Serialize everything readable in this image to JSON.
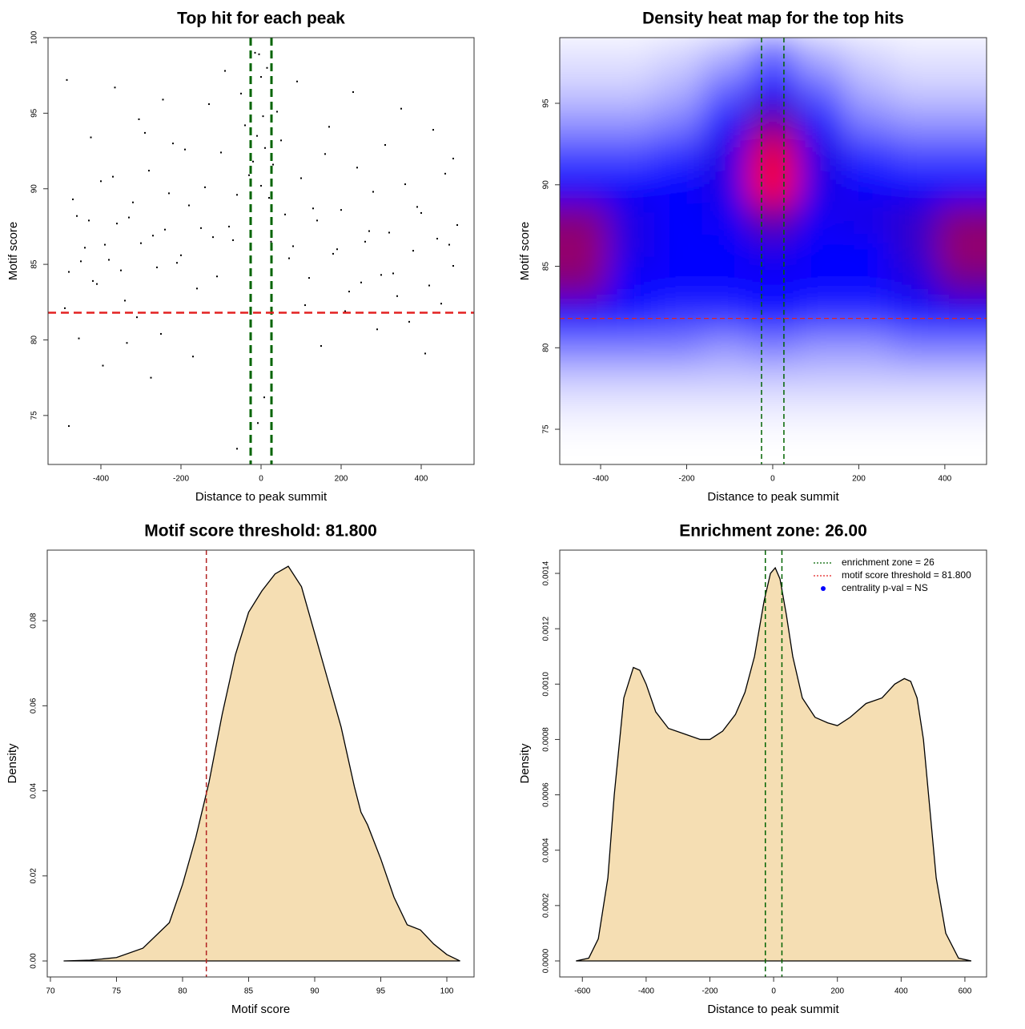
{
  "chart_data": [
    {
      "type": "scatter",
      "title": "Top hit for each peak",
      "x_label": "Distance to peak summit",
      "y_label": "Motif score",
      "xlim": [
        -532,
        532
      ],
      "ylim": [
        71.76,
        100
      ],
      "xticks": [
        -400,
        -200,
        0,
        200,
        400
      ],
      "yticks": [
        75,
        80,
        85,
        90,
        95,
        100
      ],
      "color": "#000000",
      "vlines": [
        -26,
        26
      ],
      "vline_color": "#006400",
      "hline": 81.8,
      "hline_color": "#e32020",
      "x": [
        -480,
        -460,
        -440,
        -420,
        -400,
        -380,
        -360,
        -340,
        -320,
        -300,
        -280,
        -260,
        -240,
        -220,
        -200,
        -180,
        -160,
        -140,
        -120,
        -100,
        -80,
        -60,
        -40,
        -20,
        -10,
        0,
        10,
        20,
        40,
        60,
        80,
        100,
        120,
        140,
        160,
        180,
        200,
        220,
        240,
        260,
        280,
        300,
        320,
        340,
        360,
        380,
        400,
        420,
        440,
        460,
        480,
        490,
        -490,
        -470,
        -450,
        -430,
        -410,
        -390,
        -370,
        -350,
        -330,
        -310,
        -290,
        -270,
        -250,
        -230,
        -210,
        -190,
        -170,
        -150,
        -130,
        -110,
        -90,
        -70,
        -50,
        -30,
        -5,
        5,
        30,
        50,
        70,
        90,
        110,
        130,
        150,
        170,
        190,
        210,
        230,
        250,
        270,
        290,
        310,
        330,
        350,
        370,
        390,
        410,
        430,
        450,
        470,
        -485,
        -455,
        -425,
        -395,
        -365,
        -335,
        -305,
        -275,
        -245,
        -15,
        15,
        -25,
        25,
        0,
        -8,
        8,
        -480,
        480,
        -60
      ],
      "y": [
        84.5,
        88.2,
        86.1,
        83.9,
        90.5,
        85.3,
        87.7,
        82.6,
        89.1,
        86.4,
        91.2,
        84.8,
        87.3,
        93.0,
        85.6,
        88.9,
        83.4,
        90.1,
        86.8,
        92.4,
        87.5,
        89.6,
        94.2,
        91.8,
        93.5,
        90.2,
        92.7,
        89.4,
        95.1,
        88.3,
        86.2,
        90.7,
        84.1,
        87.9,
        92.3,
        85.7,
        88.6,
        83.2,
        91.4,
        86.5,
        89.8,
        84.3,
        87.1,
        82.9,
        90.3,
        85.9,
        88.4,
        83.6,
        86.7,
        91.0,
        84.9,
        87.6,
        82.1,
        89.3,
        85.2,
        87.9,
        83.7,
        86.3,
        90.8,
        84.6,
        88.1,
        81.5,
        93.7,
        86.9,
        80.4,
        89.7,
        85.1,
        92.6,
        78.9,
        87.4,
        95.6,
        84.2,
        97.8,
        86.6,
        96.3,
        90.9,
        98.9,
        94.8,
        91.6,
        93.2,
        85.4,
        97.1,
        82.3,
        88.7,
        79.6,
        94.1,
        86.0,
        81.9,
        96.4,
        83.8,
        87.2,
        80.7,
        92.9,
        84.4,
        95.3,
        81.2,
        88.8,
        79.1,
        93.9,
        82.4,
        86.3,
        97.2,
        80.1,
        93.4,
        78.3,
        96.7,
        79.8,
        94.6,
        77.5,
        95.9,
        99.0,
        98.0,
        88.0,
        86.5,
        97.4,
        74.5,
        76.2,
        74.3,
        92.0,
        72.8
      ]
    },
    {
      "type": "heatmap",
      "title": "Density heat map for the top hits",
      "x_label": "Distance to peak summit",
      "y_label": "Motif score",
      "xlim": [
        -495,
        497
      ],
      "ylim": [
        72.84,
        99.03
      ],
      "xticks": [
        -400,
        -200,
        0,
        200,
        400
      ],
      "yticks": [
        75,
        80,
        85,
        90,
        95
      ],
      "vlines": [
        -26,
        26
      ],
      "vline_color": "#006400",
      "hline": 81.8,
      "hline_color": "#e32020",
      "x": [
        -440,
        -330,
        -220,
        -110,
        0,
        110,
        220,
        330,
        440
      ],
      "y": [
        76,
        78,
        80,
        82,
        84,
        86,
        88,
        90,
        92,
        94,
        96,
        98
      ],
      "z": [
        [
          0.03,
          0.03,
          0.03,
          0.03,
          0.03,
          0.03,
          0.03,
          0.03,
          0.03
        ],
        [
          0.1,
          0.1,
          0.1,
          0.1,
          0.1,
          0.1,
          0.1,
          0.1,
          0.1
        ],
        [
          0.25,
          0.25,
          0.25,
          0.2,
          0.25,
          0.2,
          0.2,
          0.25,
          0.25
        ],
        [
          0.5,
          0.45,
          0.4,
          0.4,
          0.45,
          0.4,
          0.4,
          0.45,
          0.5
        ],
        [
          0.75,
          0.5,
          0.5,
          0.5,
          0.5,
          0.5,
          0.5,
          0.55,
          0.7
        ],
        [
          0.8,
          0.55,
          0.5,
          0.5,
          0.55,
          0.5,
          0.5,
          0.6,
          0.8
        ],
        [
          0.75,
          0.55,
          0.5,
          0.52,
          0.7,
          0.52,
          0.55,
          0.6,
          0.75
        ],
        [
          0.5,
          0.5,
          0.5,
          0.55,
          1.0,
          0.55,
          0.5,
          0.5,
          0.5
        ],
        [
          0.35,
          0.35,
          0.4,
          0.55,
          0.95,
          0.55,
          0.4,
          0.35,
          0.35
        ],
        [
          0.2,
          0.2,
          0.25,
          0.45,
          0.7,
          0.45,
          0.25,
          0.2,
          0.2
        ],
        [
          0.1,
          0.1,
          0.15,
          0.3,
          0.5,
          0.3,
          0.15,
          0.1,
          0.1
        ],
        [
          0.05,
          0.05,
          0.08,
          0.15,
          0.3,
          0.15,
          0.08,
          0.05,
          0.05
        ]
      ]
    },
    {
      "type": "density",
      "title": "Motif score threshold: 81.800",
      "x_label": "Motif score",
      "y_label": "Density",
      "xlim": [
        69.76,
        102.06
      ],
      "ylim": [
        -0.00376,
        0.0966
      ],
      "xticks": [
        70,
        75,
        80,
        85,
        90,
        95,
        100
      ],
      "yticks": [
        {
          "value": 0,
          "label": "0.00"
        },
        {
          "value": 0.02,
          "label": "0.02"
        },
        {
          "value": 0.04,
          "label": "0.04"
        },
        {
          "value": 0.06,
          "label": "0.06"
        },
        {
          "value": 0.08,
          "label": "0.08"
        }
      ],
      "fill": "#f5deb3",
      "vline": 81.8,
      "vline_color": "#b22222",
      "x": [
        71,
        73,
        75,
        77,
        79,
        80,
        81,
        82,
        83,
        84,
        85,
        86,
        87,
        88,
        89,
        90,
        91,
        92,
        93,
        93.5,
        94,
        95,
        96,
        97,
        98,
        99,
        100,
        101
      ],
      "y": [
        0,
        0.0002,
        0.0008,
        0.003,
        0.009,
        0.018,
        0.029,
        0.042,
        0.058,
        0.072,
        0.082,
        0.087,
        0.091,
        0.0928,
        0.088,
        0.077,
        0.066,
        0.055,
        0.041,
        0.035,
        0.032,
        0.024,
        0.015,
        0.0085,
        0.0073,
        0.004,
        0.0015,
        0
      ]
    },
    {
      "type": "density",
      "title": "Enrichment zone: 26.00",
      "x_label": "Distance to peak summit",
      "y_label": "Density",
      "xlim": [
        -671,
        668
      ],
      "ylim": [
        -5.79e-05,
        0.001484
      ],
      "xticks": [
        -600,
        -400,
        -200,
        0,
        200,
        400,
        600
      ],
      "yticks": [
        {
          "value": 0,
          "label": "0.0000"
        },
        {
          "value": 0.0002,
          "label": "0.0002"
        },
        {
          "value": 0.0004,
          "label": "0.0004"
        },
        {
          "value": 0.0006,
          "label": "0.0006"
        },
        {
          "value": 0.0008,
          "label": "0.0008"
        },
        {
          "value": 0.001,
          "label": "0.0010"
        },
        {
          "value": 0.0012,
          "label": "0.0012"
        },
        {
          "value": 0.0014,
          "label": "0.0014"
        }
      ],
      "fill": "#f5deb3",
      "vlines": [
        -26,
        26
      ],
      "vline_color": "#006400",
      "legend_position": "topright",
      "legend": [
        {
          "label": "enrichment zone = 26",
          "color": "#006400",
          "style": "dotted"
        },
        {
          "label": "motif score threshold = 81.800",
          "color": "#e32020",
          "style": "dotted"
        },
        {
          "label": "centrality p-val = NS",
          "color": "#0000ff",
          "style": "point"
        }
      ],
      "x": [
        -620,
        -580,
        -550,
        -520,
        -500,
        -470,
        -440,
        -420,
        -400,
        -370,
        -330,
        -280,
        -230,
        -200,
        -160,
        -120,
        -90,
        -60,
        -30,
        -10,
        5,
        20,
        40,
        60,
        90,
        130,
        170,
        200,
        240,
        290,
        340,
        380,
        410,
        430,
        450,
        470,
        490,
        510,
        540,
        580,
        620
      ],
      "y": [
        0,
        1e-05,
        8e-05,
        0.0003,
        0.0006,
        0.00095,
        0.00106,
        0.00105,
        0.001,
        0.0009,
        0.00084,
        0.00082,
        0.0008,
        0.0008,
        0.00083,
        0.00089,
        0.00097,
        0.0011,
        0.0013,
        0.0014,
        0.00142,
        0.00138,
        0.00125,
        0.0011,
        0.00095,
        0.00088,
        0.00086,
        0.00085,
        0.00088,
        0.00093,
        0.00095,
        0.001,
        0.00102,
        0.00101,
        0.00095,
        0.0008,
        0.00055,
        0.0003,
        0.0001,
        1e-05,
        0
      ]
    }
  ]
}
